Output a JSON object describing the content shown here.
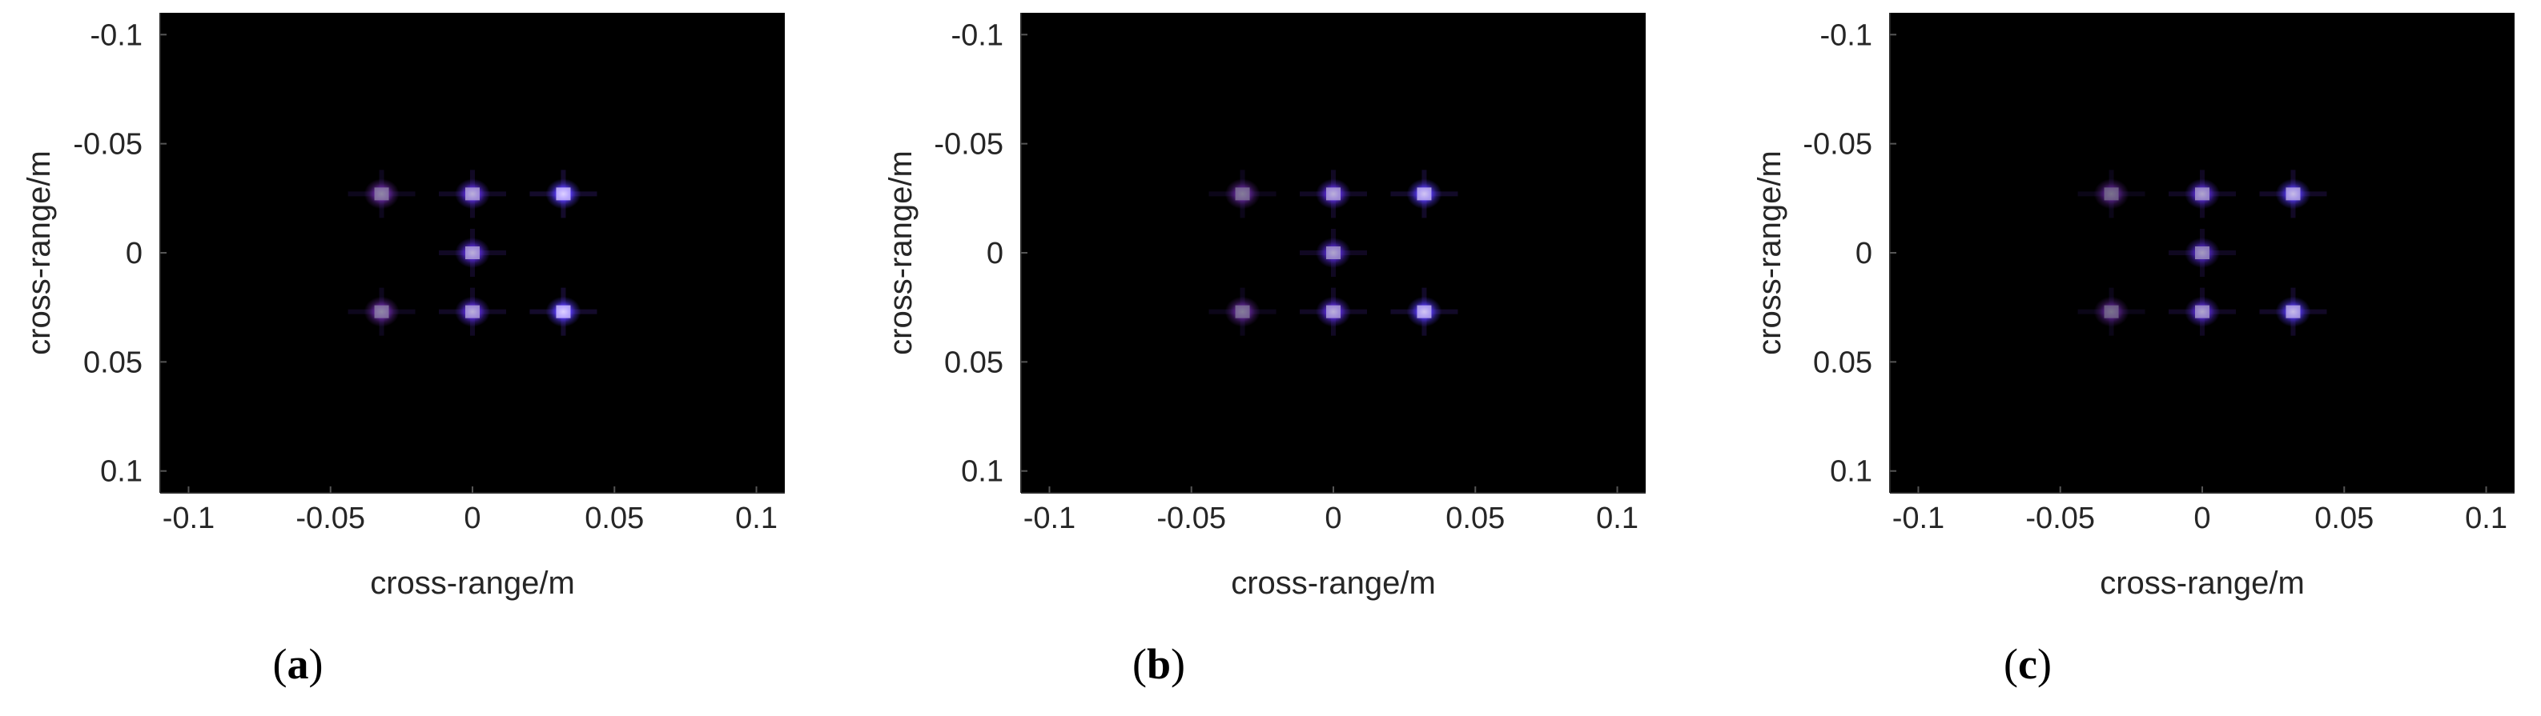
{
  "chart_data": [
    {
      "type": "scatter",
      "panel_label": "a",
      "xlabel": "cross-range/m",
      "ylabel": "cross-range/m",
      "xlim": [
        -0.11,
        0.11
      ],
      "ylim": [
        -0.11,
        0.11
      ],
      "y_reversed": true,
      "xticks": [
        -0.1,
        -0.05,
        0,
        0.05,
        0.1
      ],
      "xtick_labels": [
        "-0.1",
        "-0.05",
        "0",
        "0.05",
        "0.1"
      ],
      "yticks": [
        -0.1,
        -0.05,
        0,
        0.05,
        0.1
      ],
      "ytick_labels": [
        "-0.1",
        "-0.05",
        "0",
        "0.05",
        "0.1"
      ],
      "background": "#000000",
      "grid": false,
      "points": [
        {
          "x": -0.032,
          "y": -0.027,
          "intensity": 0.65
        },
        {
          "x": 0.0,
          "y": -0.027,
          "intensity": 0.85
        },
        {
          "x": 0.032,
          "y": -0.027,
          "intensity": 1.0
        },
        {
          "x": 0.0,
          "y": 0.0,
          "intensity": 0.85
        },
        {
          "x": -0.032,
          "y": 0.027,
          "intensity": 0.65
        },
        {
          "x": 0.0,
          "y": 0.027,
          "intensity": 0.85
        },
        {
          "x": 0.032,
          "y": 0.027,
          "intensity": 1.0
        }
      ]
    },
    {
      "type": "scatter",
      "panel_label": "b",
      "xlabel": "cross-range/m",
      "ylabel": "cross-range/m",
      "xlim": [
        -0.11,
        0.11
      ],
      "ylim": [
        -0.11,
        0.11
      ],
      "y_reversed": true,
      "xticks": [
        -0.1,
        -0.05,
        0,
        0.05,
        0.1
      ],
      "xtick_labels": [
        "-0.1",
        "-0.05",
        "0",
        "0.05",
        "0.1"
      ],
      "yticks": [
        -0.1,
        -0.05,
        0,
        0.05,
        0.1
      ],
      "ytick_labels": [
        "-0.1",
        "-0.05",
        "0",
        "0.05",
        "0.1"
      ],
      "background": "#000000",
      "grid": false,
      "points": [
        {
          "x": -0.032,
          "y": -0.027,
          "intensity": 0.6
        },
        {
          "x": 0.0,
          "y": -0.027,
          "intensity": 0.85
        },
        {
          "x": 0.032,
          "y": -0.027,
          "intensity": 0.95
        },
        {
          "x": 0.0,
          "y": 0.0,
          "intensity": 0.8
        },
        {
          "x": -0.032,
          "y": 0.027,
          "intensity": 0.6
        },
        {
          "x": 0.0,
          "y": 0.027,
          "intensity": 0.85
        },
        {
          "x": 0.032,
          "y": 0.027,
          "intensity": 0.95
        }
      ]
    },
    {
      "type": "scatter",
      "panel_label": "c",
      "xlabel": "cross-range/m",
      "ylabel": "cross-range/m",
      "xlim": [
        -0.11,
        0.11
      ],
      "ylim": [
        -0.11,
        0.11
      ],
      "y_reversed": true,
      "xticks": [
        -0.1,
        -0.05,
        0,
        0.05,
        0.1
      ],
      "xtick_labels": [
        "-0.1",
        "-0.05",
        "0",
        "0.05",
        "0.1"
      ],
      "yticks": [
        -0.1,
        -0.05,
        0,
        0.05,
        0.1
      ],
      "ytick_labels": [
        "-0.1",
        "-0.05",
        "0",
        "0.05",
        "0.1"
      ],
      "background": "#000000",
      "grid": false,
      "points": [
        {
          "x": -0.032,
          "y": -0.027,
          "intensity": 0.55
        },
        {
          "x": 0.0,
          "y": -0.027,
          "intensity": 0.8
        },
        {
          "x": 0.032,
          "y": -0.027,
          "intensity": 0.9
        },
        {
          "x": 0.0,
          "y": 0.0,
          "intensity": 0.75
        },
        {
          "x": -0.032,
          "y": 0.027,
          "intensity": 0.55
        },
        {
          "x": 0.0,
          "y": 0.027,
          "intensity": 0.8
        },
        {
          "x": 0.032,
          "y": 0.027,
          "intensity": 0.9
        }
      ]
    }
  ],
  "colors": {
    "plot_background": "#000000",
    "point_left": "#9a3df0",
    "point_center": "#6a35ff",
    "point_right": "#5a3cff",
    "axis_text": "#262626",
    "axis_line": "#262626"
  }
}
